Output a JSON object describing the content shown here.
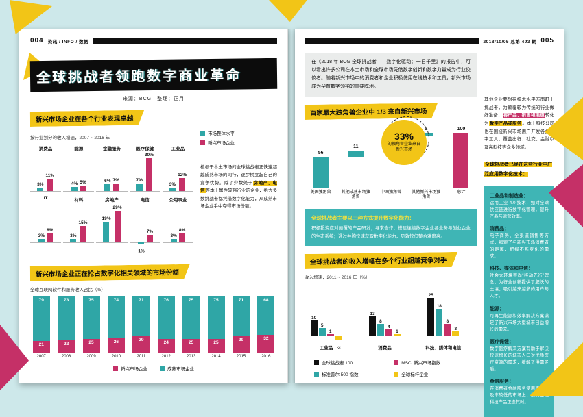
{
  "theme": {
    "background": "#cde8ea",
    "teal": "#2fa6a6",
    "magenta": "#c53067",
    "yellow": "#f2c517",
    "ink": "#101010",
    "teal_box": "#3fb5b5"
  },
  "left_page": {
    "folio": {
      "page_no": "004",
      "section_label": "资讯 / INFO / 数据"
    },
    "title": "全球挑战者领跑数字商业革命",
    "credit": "来源：BCG　整理：正月",
    "section1": {
      "note_parts": [
        {
          "text": "植根于本土市场的全球挑战者正快速超越成熟市场的同行，逐步树立起自己的竞争优势。除了少数处于"
        },
        {
          "text": "房地产、电信",
          "highlight": "yellow"
        },
        {
          "text": "等本土属性较强行业的企业，绝大多数挑战者都凭借数字化能力，从成熟市场企业手中夺得市场份额。"
        }
      ]
    }
  },
  "right_page": {
    "folio": {
      "issue_label": "2018/10/05 总第 493 期",
      "page_no": "005"
    },
    "intro": "在《2018 年 BCG 全球挑战者——数字化驱动：一日千里》的报告中，可以看出许多公司在本土市场和全球市场凭借数字创新和数字力量成为行业佼佼者。随着新兴市场中的消费者和企业积极使用在线技术和工具，新兴市场成为孕育数字领袖的重要阵地。",
    "approach_box": {
      "title": "全球挑战者主要以三种方式提升数字化能力：",
      "body": "积极投资应对颠覆的产品研发；寻求合作，搭建连接数字企业各业务与创业企业的生态系统；通过并购快速获取数字化能力，见效快但整合难度高。"
    },
    "sidebar": {
      "note_parts": [
        {
          "text": "其他企业要想在技术水平方面赶上挑战者，为颠覆较为传统的行业做好准备，"
        },
        {
          "text": "将产品、销售和渠道",
          "highlight": "magenta"
        },
        {
          "text": "转化为"
        },
        {
          "text": "数字产品或服务",
          "highlight": "yellow"
        },
        {
          "text": "。本土科技公司也在围绕新兴市场用户开发各类数字工具，覆盖出行、社交、金融以及高科技等众多领域。"
        }
      ],
      "tech_title": "全球挑战者已经在这些行业中广泛应用数字化技术：",
      "industries": [
        {
          "name": "工业品和制造业：",
          "desc": "运用工业 4.0 技术，如对全球供应链进行数字化管理，提升产品与运营效率。"
        },
        {
          "name": "消费品：",
          "desc": "电子商务、全渠道销售等方式，缩短了与新兴市场消费者的距离，把握不断变化的需求。"
        },
        {
          "name": "科技、媒体和电信：",
          "desc": "社会大环境崇尚“移动先行”理念，为行业创新提供了肥沃的土壤，吸引越来越多的用户与人才。"
        },
        {
          "name": "能源：",
          "desc": "可再生能源和效率解决方案满足了新兴市场大型城市日益增长的需求。"
        },
        {
          "name": "医疗保健：",
          "desc": "数字医疗解决方案有助于解决快速增长的城市人口对优质医疗资源的需求，缓解了供需矛盾。"
        },
        {
          "name": "金融服务：",
          "desc": "在消费者金融服务使用率及普及率较低的市场上，投资金融科技产品正逢其时。"
        }
      ]
    }
  },
  "chart_data": [
    {
      "id": "industry_growth",
      "type": "bar",
      "title": "新兴市场企业在各个行业表现卓越",
      "subtitle": "按行业划分的收入增速，2007 ~ 2016 年",
      "unit": "%",
      "legend": [
        "市场整体水平",
        "新兴市场企业"
      ],
      "series_names": [
        "市场整体水平",
        "新兴市场企业"
      ],
      "rows": [
        {
          "categories": [
            "消费品",
            "能源",
            "金融服务",
            "医疗保健",
            "工业品"
          ],
          "market": [
            3,
            4,
            6,
            7,
            3
          ],
          "challenger": [
            11,
            5,
            7,
            30,
            12
          ]
        },
        {
          "categories": [
            "IT",
            "材料",
            "房地产",
            "电信",
            "公用事业"
          ],
          "market": [
            3,
            3,
            19,
            -1,
            3
          ],
          "challenger": [
            8,
            15,
            29,
            7,
            8
          ]
        }
      ]
    },
    {
      "id": "internet_share",
      "type": "stacked_bar",
      "title": "新兴市场企业正在抢占数字化相关领域的市场份额",
      "subtitle": "全球互联网软件和服务收入占比（%）",
      "categories": [
        "2007",
        "2008",
        "2009",
        "2010",
        "2011",
        "2012",
        "2013",
        "2014",
        "2015",
        "2016"
      ],
      "series": [
        {
          "name": "成熟市场企业",
          "color_key": "teal",
          "values": [
            79,
            78,
            75,
            74,
            71,
            76,
            75,
            75,
            71,
            68
          ]
        },
        {
          "name": "新兴市场企业",
          "color_key": "magenta",
          "values": [
            21,
            22,
            25,
            26,
            29,
            24,
            25,
            25,
            29,
            32
          ]
        }
      ],
      "legend": [
        "新兴市场企业",
        "成熟市场企业"
      ],
      "ylim": [
        0,
        100
      ]
    },
    {
      "id": "unicorns",
      "type": "waterfall_bar",
      "title": "百家最大独角兽企业中 1/3 来自新兴市场",
      "badge": {
        "pct": "33%",
        "label": "的独角兽企业来自新兴市场"
      },
      "categories": [
        "美国独角兽",
        "其他成熟市场独角兽",
        "中国独角兽",
        "其他新兴市场独角兽",
        "总计"
      ],
      "values": [
        56,
        11,
        28,
        5,
        100
      ],
      "total_index": 4,
      "ylim": [
        0,
        100
      ]
    },
    {
      "id": "revenue_growth",
      "type": "grouped_bar",
      "title": "全球挑战者的收入增幅在多个行业超越竞争对手",
      "subtitle": "收入增速，2011 ~ 2016 年（%）",
      "categories": [
        "工业品",
        "消费品",
        "科技、媒体和电信"
      ],
      "series": [
        {
          "name": "全球挑战者 100",
          "color_key": "black",
          "values": [
            10,
            13,
            25
          ]
        },
        {
          "name": "标准普尔 500 指数",
          "color_key": "teal",
          "values": [
            5,
            8,
            18
          ]
        },
        {
          "name": "MSCI 新兴市场指数",
          "color_key": "magenta",
          "values": [
            1,
            4,
            8
          ]
        },
        {
          "name": "全球标杆企业",
          "color_key": "yellow",
          "values": [
            -3,
            1,
            3
          ]
        }
      ]
    }
  ]
}
